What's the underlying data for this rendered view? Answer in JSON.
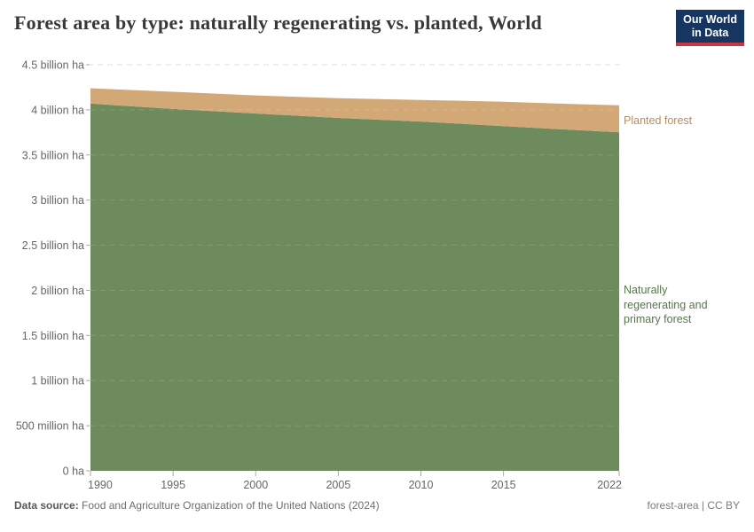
{
  "header": {
    "title": "Forest area by type: naturally regenerating vs. planted, World",
    "logo": {
      "line1": "Our World",
      "line2": "in Data"
    }
  },
  "colors": {
    "natural_area": "#6e8b5e",
    "planted_area": "#d2a877",
    "natural_label": "#55784b",
    "planted_label": "#b98c5d",
    "gridline": "#dcdcdc",
    "gridline_overlay_on_area": "rgba(255,255,255,0.14)",
    "axis_text": "#666666",
    "tick_mark": "#aaaaaa",
    "logo_bg": "#163560",
    "logo_red": "#c5383f"
  },
  "chart_data": {
    "type": "area",
    "stacked": true,
    "title": "Forest area by type: naturally regenerating vs. planted, World",
    "unit": "billion ha",
    "x": [
      1990,
      1995,
      2000,
      2005,
      2010,
      2015,
      2020,
      2022
    ],
    "x_ticks": [
      1990,
      1995,
      2000,
      2005,
      2010,
      2015,
      2022
    ],
    "xlim": [
      1990,
      2022
    ],
    "ylim_billion_ha": [
      0,
      4.5
    ],
    "grid": "dashed horizontal",
    "legend_position": "labels at right edge of plot",
    "series": [
      {
        "name": "Naturally regenerating and primary forest",
        "color": "#6e8b5e",
        "values_billion_ha": [
          4.07,
          4.01,
          3.96,
          3.91,
          3.87,
          3.82,
          3.77,
          3.75
        ]
      },
      {
        "name": "Planted forest",
        "color": "#d2a877",
        "values_billion_ha": [
          0.17,
          0.19,
          0.2,
          0.22,
          0.24,
          0.27,
          0.29,
          0.3
        ]
      }
    ],
    "y_ticks": [
      {
        "value": 0,
        "label": "0 ha"
      },
      {
        "value": 0.5,
        "label": "500 million ha"
      },
      {
        "value": 1,
        "label": "1 billion ha"
      },
      {
        "value": 1.5,
        "label": "1.5 billion ha"
      },
      {
        "value": 2,
        "label": "2 billion ha"
      },
      {
        "value": 2.5,
        "label": "2.5 billion ha"
      },
      {
        "value": 3,
        "label": "3 billion ha"
      },
      {
        "value": 3.5,
        "label": "3.5 billion ha"
      },
      {
        "value": 4,
        "label": "4 billion ha"
      },
      {
        "value": 4.5,
        "label": "4.5 billion ha"
      }
    ]
  },
  "footer": {
    "source_label": "Data source:",
    "source_text": "Food and Agriculture Organization of the United Nations (2024)",
    "right_text": "forest-area | CC BY"
  }
}
